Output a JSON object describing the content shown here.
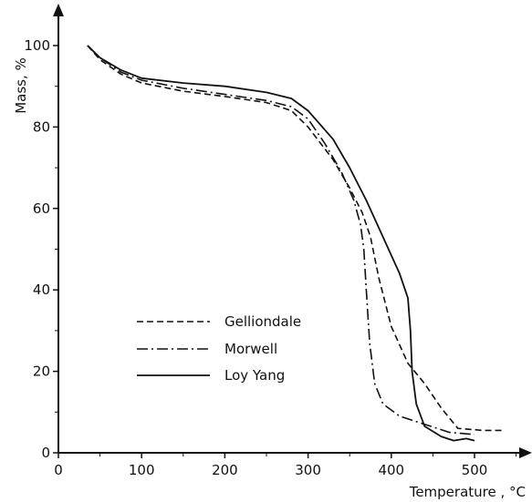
{
  "chart_data": {
    "type": "line",
    "title": "",
    "xlabel": "Temperature , °C",
    "ylabel": "Mass, %",
    "xlim": [
      0,
      560
    ],
    "ylim": [
      0,
      110
    ],
    "x_ticks": [
      0,
      100,
      200,
      300,
      400,
      500
    ],
    "y_ticks": [
      0,
      20,
      40,
      60,
      80,
      100
    ],
    "grid": false,
    "legend_position": "center-left",
    "series": [
      {
        "name": "Gelliondale",
        "style": "dashed",
        "points": [
          [
            35,
            100
          ],
          [
            50,
            96.5
          ],
          [
            75,
            93
          ],
          [
            100,
            90.8
          ],
          [
            150,
            88.8
          ],
          [
            200,
            87.5
          ],
          [
            250,
            86
          ],
          [
            280,
            84
          ],
          [
            300,
            80
          ],
          [
            330,
            72
          ],
          [
            350,
            65
          ],
          [
            365,
            59
          ],
          [
            375,
            53
          ],
          [
            385,
            43
          ],
          [
            400,
            31
          ],
          [
            420,
            22
          ],
          [
            440,
            17
          ],
          [
            460,
            11
          ],
          [
            480,
            6
          ],
          [
            510,
            5.5
          ],
          [
            535,
            5.5
          ]
        ]
      },
      {
        "name": "Morwell",
        "style": "dash-dot",
        "points": [
          [
            35,
            100
          ],
          [
            50,
            97
          ],
          [
            75,
            93.5
          ],
          [
            100,
            91.5
          ],
          [
            150,
            89.5
          ],
          [
            200,
            88
          ],
          [
            250,
            86.5
          ],
          [
            280,
            85
          ],
          [
            300,
            82
          ],
          [
            320,
            76
          ],
          [
            340,
            69
          ],
          [
            355,
            62
          ],
          [
            363,
            56
          ],
          [
            367,
            50
          ],
          [
            370,
            40
          ],
          [
            374,
            27
          ],
          [
            380,
            17
          ],
          [
            390,
            12
          ],
          [
            410,
            9
          ],
          [
            440,
            7
          ],
          [
            470,
            5
          ],
          [
            500,
            4.5
          ]
        ]
      },
      {
        "name": "Loy Yang",
        "style": "solid",
        "points": [
          [
            35,
            100
          ],
          [
            50,
            97
          ],
          [
            75,
            94
          ],
          [
            100,
            92
          ],
          [
            150,
            90.8
          ],
          [
            200,
            90
          ],
          [
            250,
            88.5
          ],
          [
            280,
            87
          ],
          [
            300,
            84
          ],
          [
            330,
            77
          ],
          [
            350,
            70
          ],
          [
            370,
            62
          ],
          [
            390,
            53
          ],
          [
            410,
            44
          ],
          [
            420,
            38
          ],
          [
            423,
            30
          ],
          [
            425,
            20
          ],
          [
            430,
            12
          ],
          [
            440,
            6.5
          ],
          [
            460,
            4
          ],
          [
            475,
            3
          ],
          [
            490,
            3.5
          ],
          [
            500,
            3
          ]
        ]
      }
    ]
  }
}
